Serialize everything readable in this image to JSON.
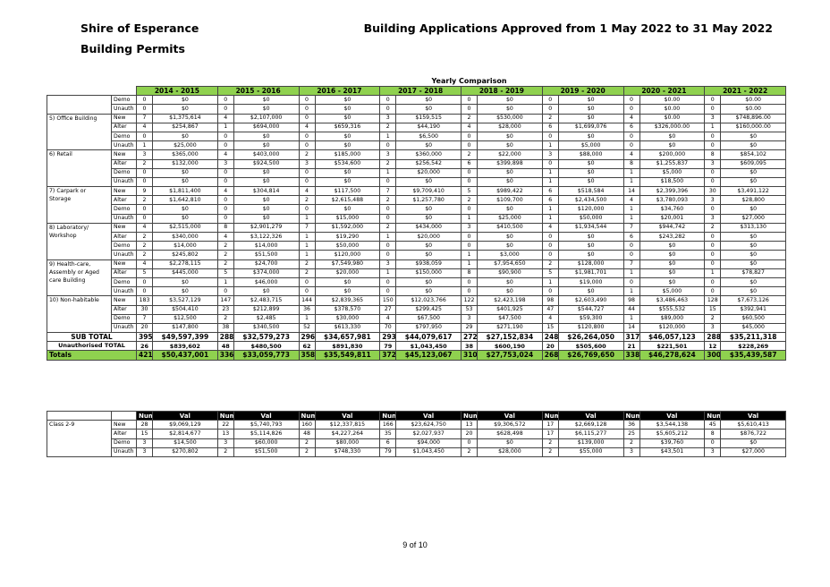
{
  "header": {
    "organisation": "Shire of Esperance",
    "section": "Building Permits",
    "title": "Building Applications Approved from 1 May 2022 to 31 May 2022"
  },
  "table_title": "Yearly Comparison",
  "years": [
    "2014 - 2015",
    "2015 - 2016",
    "2016 - 2017",
    "2017 - 2018",
    "2018 - 2019",
    "2019 - 2020",
    "2020 - 2021",
    "2021 - 2022"
  ],
  "categories": [
    {
      "name": "",
      "rows": [
        {
          "type": "Demo",
          "cells": [
            "0",
            "$0",
            "0",
            "$0",
            "0",
            "$0",
            "0",
            "$0",
            "0",
            "$0",
            "0",
            "$0",
            "0",
            "$0.00",
            "0",
            "$0.00"
          ]
        },
        {
          "type": "Unauth",
          "cells": [
            "0",
            "$0",
            "0",
            "$0",
            "0",
            "$0",
            "0",
            "$0",
            "0",
            "$0",
            "0",
            "$0",
            "0",
            "$0.00",
            "0",
            "$0.00"
          ]
        }
      ]
    },
    {
      "name": "5) Office Building",
      "rows": [
        {
          "type": "New",
          "cells": [
            "7",
            "$1,375,614",
            "4",
            "$2,107,000",
            "0",
            "$0",
            "3",
            "$159,515",
            "2",
            "$530,000",
            "2",
            "$0",
            "4",
            "$0.00",
            "3",
            "$748,896.00"
          ]
        },
        {
          "type": "Alter",
          "cells": [
            "4",
            "$254,867",
            "1",
            "$694,000",
            "4",
            "$659,316",
            "2",
            "$44,190",
            "4",
            "$28,000",
            "6",
            "$1,699,076",
            "6",
            "$326,000.00",
            "1",
            "$160,000.00"
          ]
        },
        {
          "type": "Demo",
          "cells": [
            "0",
            "$0",
            "0",
            "$0",
            "0",
            "$0",
            "1",
            "$6,500",
            "0",
            "$0",
            "0",
            "$0",
            "0",
            "$0",
            "0",
            "$0"
          ]
        },
        {
          "type": "Unauth",
          "cells": [
            "1",
            "$25,000",
            "0",
            "$0",
            "0",
            "$0",
            "0",
            "$0",
            "0",
            "$0",
            "1",
            "$5,000",
            "0",
            "$0",
            "0",
            "$0"
          ]
        }
      ]
    },
    {
      "name": "6) Retail",
      "rows": [
        {
          "type": "New",
          "cells": [
            "3",
            "$365,000",
            "4",
            "$403,000",
            "2",
            "$185,000",
            "3",
            "$360,000",
            "2",
            "$22,000",
            "3",
            "$88,000",
            "4",
            "$200,000",
            "8",
            "$854,102"
          ]
        },
        {
          "type": "Alter",
          "cells": [
            "2",
            "$132,000",
            "3",
            "$924,500",
            "3",
            "$534,600",
            "2",
            "$256,542",
            "6",
            "$399,898",
            "0",
            "$0",
            "8",
            "$1,255,837",
            "3",
            "$609,095"
          ]
        },
        {
          "type": "Demo",
          "cells": [
            "0",
            "$0",
            "0",
            "$0",
            "0",
            "$0",
            "1",
            "$20,000",
            "0",
            "$0",
            "1",
            "$0",
            "1",
            "$5,000",
            "0",
            "$0"
          ]
        },
        {
          "type": "Unauth",
          "cells": [
            "0",
            "$0",
            "0",
            "$0",
            "0",
            "$0",
            "0",
            "$0",
            "0",
            "$0",
            "1",
            "$0",
            "1",
            "$18,500",
            "0",
            "$0"
          ]
        }
      ]
    },
    {
      "name": "7) Carpark or Storage",
      "rows": [
        {
          "type": "New",
          "cells": [
            "9",
            "$1,811,400",
            "4",
            "$304,814",
            "4",
            "$117,500",
            "7",
            "$9,709,410",
            "5",
            "$989,422",
            "6",
            "$518,584",
            "14",
            "$2,399,396",
            "30",
            "$3,491,122"
          ]
        },
        {
          "type": "Alter",
          "cells": [
            "2",
            "$1,642,810",
            "0",
            "$0",
            "2",
            "$2,615,488",
            "2",
            "$1,257,780",
            "2",
            "$109,700",
            "6",
            "$2,434,500",
            "4",
            "$3,780,093",
            "3",
            "$28,800"
          ]
        },
        {
          "type": "Demo",
          "cells": [
            "0",
            "$0",
            "0",
            "$0",
            "0",
            "$0",
            "0",
            "$0",
            "0",
            "$0",
            "1",
            "$120,000",
            "1",
            "$34,760",
            "0",
            "$0"
          ]
        },
        {
          "type": "Unauth",
          "cells": [
            "0",
            "$0",
            "0",
            "$0",
            "1",
            "$15,000",
            "0",
            "$0",
            "1",
            "$25,000",
            "1",
            "$50,000",
            "1",
            "$20,001",
            "3",
            "$27,000"
          ]
        }
      ]
    },
    {
      "name": "8) Laboratory/ Workshop",
      "rows": [
        {
          "type": "New",
          "cells": [
            "4",
            "$2,515,000",
            "8",
            "$2,901,279",
            "7",
            "$1,592,000",
            "2",
            "$434,000",
            "3",
            "$410,500",
            "4",
            "$1,934,544",
            "7",
            "$944,742",
            "2",
            "$313,130"
          ]
        },
        {
          "type": "Alter",
          "cells": [
            "2",
            "$340,000",
            "4",
            "$3,122,326",
            "1",
            "$19,290",
            "1",
            "$20,000",
            "0",
            "$0",
            "0",
            "$0",
            "6",
            "$243,282",
            "0",
            "$0"
          ]
        },
        {
          "type": "Demo",
          "cells": [
            "2",
            "$14,000",
            "2",
            "$14,000",
            "1",
            "$50,000",
            "0",
            "$0",
            "0",
            "$0",
            "0",
            "$0",
            "0",
            "$0",
            "0",
            "$0"
          ]
        },
        {
          "type": "Unauth",
          "cells": [
            "2",
            "$245,802",
            "2",
            "$51,500",
            "1",
            "$120,000",
            "0",
            "$0",
            "1",
            "$3,000",
            "0",
            "$0",
            "0",
            "$0",
            "0",
            "$0"
          ]
        }
      ]
    },
    {
      "name": "9) Health-care, Assembly or Aged care Building",
      "rows": [
        {
          "type": "New",
          "cells": [
            "4",
            "$2,278,115",
            "2",
            "$24,700",
            "2",
            "$7,549,980",
            "3",
            "$938,059",
            "1",
            "$7,954,650",
            "2",
            "$128,000",
            "7",
            "$0",
            "0",
            "$0"
          ]
        },
        {
          "type": "Alter",
          "cells": [
            "5",
            "$445,000",
            "5",
            "$374,000",
            "2",
            "$20,000",
            "1",
            "$150,000",
            "8",
            "$90,900",
            "5",
            "$1,981,701",
            "1",
            "$0",
            "1",
            "$78,827"
          ]
        },
        {
          "type": "Demo",
          "cells": [
            "0",
            "$0",
            "1",
            "$46,000",
            "0",
            "$0",
            "0",
            "$0",
            "0",
            "$0",
            "1",
            "$19,000",
            "0",
            "$0",
            "0",
            "$0"
          ]
        },
        {
          "type": "Unauth",
          "cells": [
            "0",
            "$0",
            "0",
            "$0",
            "0",
            "$0",
            "0",
            "$0",
            "0",
            "$0",
            "0",
            "$0",
            "1",
            "$5,000",
            "0",
            "$0"
          ]
        }
      ]
    },
    {
      "name": "10) Non-habitable",
      "rows": [
        {
          "type": "New",
          "cells": [
            "183",
            "$3,527,129",
            "147",
            "$2,483,715",
            "144",
            "$2,839,365",
            "150",
            "$12,023,766",
            "122",
            "$2,423,198",
            "98",
            "$2,603,490",
            "98",
            "$3,486,463",
            "128",
            "$7,673,126"
          ]
        },
        {
          "type": "Alter",
          "cells": [
            "30",
            "$504,410",
            "23",
            "$212,899",
            "36",
            "$378,570",
            "27",
            "$299,425",
            "53",
            "$401,925",
            "47",
            "$544,727",
            "44",
            "$555,532",
            "15",
            "$392,941"
          ]
        },
        {
          "type": "Demo",
          "cells": [
            "7",
            "$12,500",
            "2",
            "$2,485",
            "1",
            "$30,000",
            "4",
            "$67,500",
            "3",
            "$47,500",
            "4",
            "$59,300",
            "1",
            "$89,000",
            "2",
            "$60,500"
          ]
        },
        {
          "type": "Unauth",
          "cells": [
            "20",
            "$147,800",
            "38",
            "$340,500",
            "52",
            "$613,330",
            "70",
            "$797,950",
            "29",
            "$271,190",
            "15",
            "$120,800",
            "14",
            "$120,000",
            "3",
            "$45,000"
          ]
        }
      ]
    }
  ],
  "subtotal": {
    "label": "SUB TOTAL",
    "cells": [
      "395",
      "$49,597,399",
      "288",
      "$32,579,273",
      "296",
      "$34,657,981",
      "293",
      "$44,079,617",
      "272",
      "$27,152,834",
      "248",
      "$26,264,050",
      "317",
      "$46,057,123",
      "288",
      "$35,211,318"
    ]
  },
  "unauthorised": {
    "label": "Unauthorised TOTAL",
    "cells": [
      "26",
      "$839,602",
      "48",
      "$480,500",
      "62",
      "$891,830",
      "79",
      "$1,043,450",
      "38",
      "$600,190",
      "20",
      "$505,600",
      "21",
      "$221,501",
      "12",
      "$228,269"
    ]
  },
  "totals": {
    "label": "Totals",
    "cells": [
      "421",
      "$50,437,001",
      "336",
      "$33,059,773",
      "358",
      "$35,549,811",
      "372",
      "$45,123,067",
      "310",
      "$27,753,024",
      "268",
      "$26,769,650",
      "338",
      "$46,278,624",
      "300",
      "$35,439,587"
    ]
  },
  "class_headers": [
    "Num",
    "Val",
    "Num",
    "Val",
    "Num",
    "Val",
    "Num",
    "Val",
    "Num",
    "Val",
    "Num",
    "Val",
    "Num",
    "Val",
    "Num",
    "Val"
  ],
  "class_table": {
    "name": "Class 2-9",
    "rows": [
      {
        "type": "New",
        "cells": [
          "28",
          "$9,069,129",
          "22",
          "$5,740,793",
          "160",
          "$12,337,815",
          "166",
          "$23,624,750",
          "13",
          "$9,306,572",
          "17",
          "$2,669,128",
          "36",
          "$3,544,138",
          "45",
          "$5,610,413"
        ]
      },
      {
        "type": "Alter",
        "cells": [
          "15",
          "$2,814,677",
          "13",
          "$5,114,826",
          "48",
          "$4,227,264",
          "35",
          "$2,027,937",
          "20",
          "$628,498",
          "17",
          "$6,115,277",
          "25",
          "$5,605,212",
          "8",
          "$876,722"
        ]
      },
      {
        "type": "Demo",
        "cells": [
          "3",
          "$14,500",
          "3",
          "$60,000",
          "2",
          "$80,000",
          "6",
          "$94,000",
          "0",
          "$0",
          "2",
          "$139,000",
          "2",
          "$39,760",
          "0",
          "$0"
        ]
      },
      {
        "type": "Unauth",
        "cells": [
          "3",
          "$270,802",
          "2",
          "$51,500",
          "2",
          "$748,330",
          "79",
          "$1,043,450",
          "2",
          "$28,000",
          "2",
          "$55,000",
          "3",
          "$43,501",
          "3",
          "$27,000"
        ]
      }
    ]
  },
  "footer": "9 of 10"
}
